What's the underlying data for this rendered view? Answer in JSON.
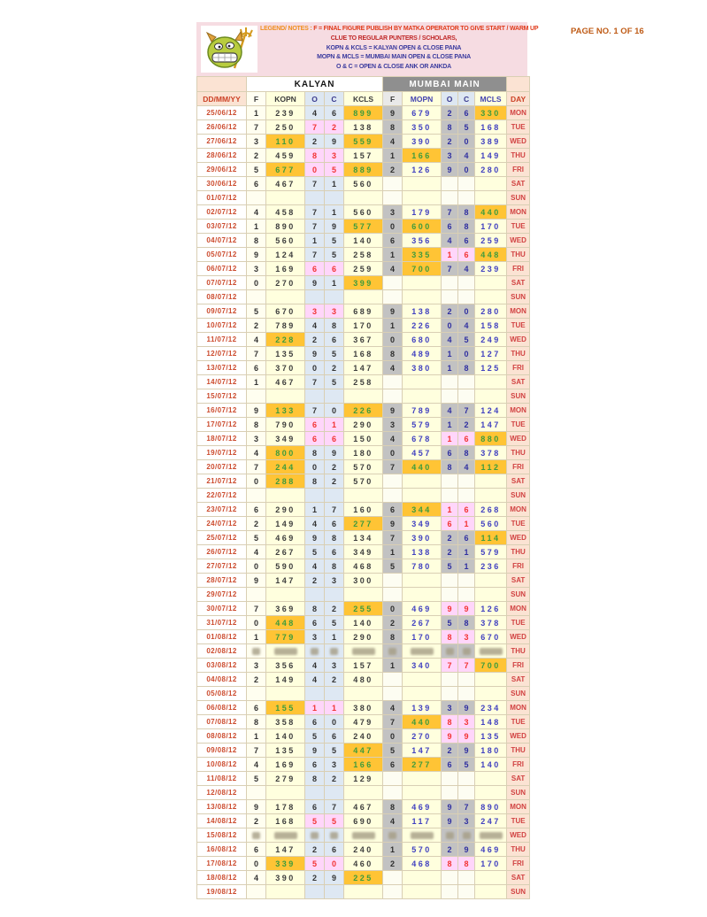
{
  "header": {
    "legend_label": "LEGEND/ NOTES :",
    "legend_line1": "F = FINAL FIGURE PUBLISH BY MATKA OPERATOR TO GIVE START / WARM UP",
    "legend_line2": "CLUE TO REGULAR PUNTERS / SCHOLARS,",
    "legend_line3": "KOPN & KCLS = KALYAN OPEN & CLOSE PANA",
    "legend_line4": "MOPN & MCLS = MUMBAI MAIN OPEN & CLOSE PANA",
    "legend_line5": "O & C = OPEN & CLOSE ANK OR ANKDA",
    "page_no": "PAGE NO. 1 OF 16",
    "mascot": "devil-mascot"
  },
  "colors": {
    "gold_highlight": "#ffc435",
    "gold_text": "#3d9b3d",
    "pink_highlight": "#ffd6fa",
    "pink_text": "#f23333",
    "pana_bg": "#ffffde",
    "kalyan_oc_bg": "#dee8f3",
    "mumbai_gray_bg": "#c2c2c2",
    "peach_bg": "#fbe3d3",
    "legend_bg": "#f6dce2",
    "date_text": "#cc4b2e",
    "mumbai_num_text": "#4040c0",
    "navy_text": "#3a3a9e"
  },
  "table": {
    "sections": {
      "kalyan": "KALYAN",
      "mumbai": "MUMBAI MAIN"
    },
    "columns": [
      "DD/MM/YY",
      "F",
      "KOPN",
      "O",
      "C",
      "KCLS",
      "F",
      "MOPN",
      "O",
      "C",
      "MCLS",
      "DAY"
    ],
    "rows": [
      {
        "date": "25/06/12",
        "day": "MON",
        "k": [
          "1",
          "239",
          "4",
          "6",
          "899"
        ],
        "m": [
          "9",
          "679",
          "2",
          "6",
          "330"
        ],
        "hl": {
          "kcls": "g",
          "mcls": "g"
        }
      },
      {
        "date": "26/06/12",
        "day": "TUE",
        "k": [
          "7",
          "250",
          "7",
          "2",
          "138"
        ],
        "m": [
          "8",
          "350",
          "8",
          "5",
          "168"
        ],
        "hl": {
          "ko": "p",
          "kc": "p"
        }
      },
      {
        "date": "27/06/12",
        "day": "WED",
        "k": [
          "3",
          "110",
          "2",
          "9",
          "559"
        ],
        "m": [
          "4",
          "390",
          "2",
          "0",
          "389"
        ],
        "hl": {
          "kopn": "g",
          "kcls": "g"
        }
      },
      {
        "date": "28/06/12",
        "day": "THU",
        "k": [
          "2",
          "459",
          "8",
          "3",
          "157"
        ],
        "m": [
          "1",
          "166",
          "3",
          "4",
          "149"
        ],
        "hl": {
          "ko": "p",
          "kc": "p",
          "mopn": "g"
        }
      },
      {
        "date": "29/06/12",
        "day": "FRI",
        "k": [
          "5",
          "677",
          "0",
          "5",
          "889"
        ],
        "m": [
          "2",
          "126",
          "9",
          "0",
          "280"
        ],
        "hl": {
          "kopn": "g",
          "kcls": "g",
          "ko": "p",
          "kc": "p"
        }
      },
      {
        "date": "30/06/12",
        "day": "SAT",
        "k": [
          "6",
          "467",
          "7",
          "1",
          "560"
        ]
      },
      {
        "date": "01/07/12",
        "day": "SUN"
      },
      {
        "date": "02/07/12",
        "day": "MON",
        "k": [
          "4",
          "458",
          "7",
          "1",
          "560"
        ],
        "m": [
          "3",
          "179",
          "7",
          "8",
          "440"
        ],
        "hl": {
          "mcls": "g"
        }
      },
      {
        "date": "03/07/12",
        "day": "TUE",
        "k": [
          "1",
          "890",
          "7",
          "9",
          "577"
        ],
        "m": [
          "0",
          "600",
          "6",
          "8",
          "170"
        ],
        "hl": {
          "kcls": "g",
          "mopn": "g"
        }
      },
      {
        "date": "04/07/12",
        "day": "WED",
        "k": [
          "8",
          "560",
          "1",
          "5",
          "140"
        ],
        "m": [
          "6",
          "356",
          "4",
          "6",
          "259"
        ]
      },
      {
        "date": "05/07/12",
        "day": "THU",
        "k": [
          "9",
          "124",
          "7",
          "5",
          "258"
        ],
        "m": [
          "1",
          "335",
          "1",
          "6",
          "448"
        ],
        "hl": {
          "mopn": "g",
          "mcls": "g",
          "mo": "p",
          "mc": "p"
        }
      },
      {
        "date": "06/07/12",
        "day": "FRI",
        "k": [
          "3",
          "169",
          "6",
          "6",
          "259"
        ],
        "m": [
          "4",
          "700",
          "7",
          "4",
          "239"
        ],
        "hl": {
          "ko": "p",
          "kc": "p",
          "mopn": "g"
        }
      },
      {
        "date": "07/07/12",
        "day": "SAT",
        "k": [
          "0",
          "270",
          "9",
          "1",
          "399"
        ],
        "hl": {
          "kcls": "g"
        }
      },
      {
        "date": "08/07/12",
        "day": "SUN"
      },
      {
        "date": "09/07/12",
        "day": "MON",
        "k": [
          "5",
          "670",
          "3",
          "3",
          "689"
        ],
        "m": [
          "9",
          "138",
          "2",
          "0",
          "280"
        ],
        "hl": {
          "ko": "p",
          "kc": "p"
        }
      },
      {
        "date": "10/07/12",
        "day": "TUE",
        "k": [
          "2",
          "789",
          "4",
          "8",
          "170"
        ],
        "m": [
          "1",
          "226",
          "0",
          "4",
          "158"
        ]
      },
      {
        "date": "11/07/12",
        "day": "WED",
        "k": [
          "4",
          "228",
          "2",
          "6",
          "367"
        ],
        "m": [
          "0",
          "680",
          "4",
          "5",
          "249"
        ],
        "hl": {
          "kopn": "g"
        }
      },
      {
        "date": "12/07/12",
        "day": "THU",
        "k": [
          "7",
          "135",
          "9",
          "5",
          "168"
        ],
        "m": [
          "8",
          "489",
          "1",
          "0",
          "127"
        ]
      },
      {
        "date": "13/07/12",
        "day": "FRI",
        "k": [
          "6",
          "370",
          "0",
          "2",
          "147"
        ],
        "m": [
          "4",
          "380",
          "1",
          "8",
          "125"
        ]
      },
      {
        "date": "14/07/12",
        "day": "SAT",
        "k": [
          "1",
          "467",
          "7",
          "5",
          "258"
        ]
      },
      {
        "date": "15/07/12",
        "day": "SUN"
      },
      {
        "date": "16/07/12",
        "day": "MON",
        "k": [
          "9",
          "133",
          "7",
          "0",
          "226"
        ],
        "m": [
          "9",
          "789",
          "4",
          "7",
          "124"
        ],
        "hl": {
          "kopn": "g",
          "kcls": "g"
        }
      },
      {
        "date": "17/07/12",
        "day": "TUE",
        "k": [
          "8",
          "790",
          "6",
          "1",
          "290"
        ],
        "m": [
          "3",
          "579",
          "1",
          "2",
          "147"
        ],
        "hl": {
          "ko": "p",
          "kc": "p"
        }
      },
      {
        "date": "18/07/12",
        "day": "WED",
        "k": [
          "3",
          "349",
          "6",
          "6",
          "150"
        ],
        "m": [
          "4",
          "678",
          "1",
          "6",
          "880"
        ],
        "hl": {
          "ko": "p",
          "kc": "p",
          "mo": "p",
          "mc": "p",
          "mcls": "g"
        }
      },
      {
        "date": "19/07/12",
        "day": "THU",
        "k": [
          "4",
          "800",
          "8",
          "9",
          "180"
        ],
        "m": [
          "0",
          "457",
          "6",
          "8",
          "378"
        ],
        "hl": {
          "kopn": "g"
        }
      },
      {
        "date": "20/07/12",
        "day": "FRI",
        "k": [
          "7",
          "244",
          "0",
          "2",
          "570"
        ],
        "m": [
          "7",
          "440",
          "8",
          "4",
          "112"
        ],
        "hl": {
          "kopn": "g",
          "mopn": "g",
          "mcls": "g"
        }
      },
      {
        "date": "21/07/12",
        "day": "SAT",
        "k": [
          "0",
          "288",
          "8",
          "2",
          "570"
        ],
        "hl": {
          "kopn": "g"
        }
      },
      {
        "date": "22/07/12",
        "day": "SUN"
      },
      {
        "date": "23/07/12",
        "day": "MON",
        "k": [
          "6",
          "290",
          "1",
          "7",
          "160"
        ],
        "m": [
          "6",
          "344",
          "1",
          "6",
          "268"
        ],
        "hl": {
          "mopn": "g",
          "mo": "p",
          "mc": "p"
        }
      },
      {
        "date": "24/07/12",
        "day": "TUE",
        "k": [
          "2",
          "149",
          "4",
          "6",
          "277"
        ],
        "m": [
          "9",
          "349",
          "6",
          "1",
          "560"
        ],
        "hl": {
          "kcls": "g",
          "mo": "p",
          "mc": "p"
        }
      },
      {
        "date": "25/07/12",
        "day": "WED",
        "k": [
          "5",
          "469",
          "9",
          "8",
          "134"
        ],
        "m": [
          "7",
          "390",
          "2",
          "6",
          "114"
        ],
        "hl": {
          "mcls": "g"
        }
      },
      {
        "date": "26/07/12",
        "day": "THU",
        "k": [
          "4",
          "267",
          "5",
          "6",
          "349"
        ],
        "m": [
          "1",
          "138",
          "2",
          "1",
          "579"
        ]
      },
      {
        "date": "27/07/12",
        "day": "FRI",
        "k": [
          "0",
          "590",
          "4",
          "8",
          "468"
        ],
        "m": [
          "5",
          "780",
          "5",
          "1",
          "236"
        ]
      },
      {
        "date": "28/07/12",
        "day": "SAT",
        "k": [
          "9",
          "147",
          "2",
          "3",
          "300"
        ]
      },
      {
        "date": "29/07/12",
        "day": "SUN"
      },
      {
        "date": "30/07/12",
        "day": "MON",
        "k": [
          "7",
          "369",
          "8",
          "2",
          "255"
        ],
        "m": [
          "0",
          "469",
          "9",
          "9",
          "126"
        ],
        "hl": {
          "kcls": "g",
          "mo": "p",
          "mc": "p"
        }
      },
      {
        "date": "31/07/12",
        "day": "TUE",
        "k": [
          "0",
          "448",
          "6",
          "5",
          "140"
        ],
        "m": [
          "2",
          "267",
          "5",
          "8",
          "378"
        ],
        "hl": {
          "kopn": "g"
        }
      },
      {
        "date": "01/08/12",
        "day": "WED",
        "k": [
          "1",
          "779",
          "3",
          "1",
          "290"
        ],
        "m": [
          "8",
          "170",
          "8",
          "3",
          "670"
        ],
        "hl": {
          "kopn": "g",
          "mo": "p",
          "mc": "p"
        }
      },
      {
        "date": "02/08/12",
        "day": "THU",
        "blur": true
      },
      {
        "date": "03/08/12",
        "day": "FRI",
        "k": [
          "3",
          "356",
          "4",
          "3",
          "157"
        ],
        "m": [
          "1",
          "340",
          "7",
          "7",
          "700"
        ],
        "hl": {
          "mo": "p",
          "mc": "p",
          "mcls": "g"
        }
      },
      {
        "date": "04/08/12",
        "day": "SAT",
        "k": [
          "2",
          "149",
          "4",
          "2",
          "480"
        ]
      },
      {
        "date": "05/08/12",
        "day": "SUN"
      },
      {
        "date": "06/08/12",
        "day": "MON",
        "k": [
          "6",
          "155",
          "1",
          "1",
          "380"
        ],
        "m": [
          "4",
          "139",
          "3",
          "9",
          "234"
        ],
        "hl": {
          "kopn": "g",
          "ko": "p",
          "kc": "p"
        }
      },
      {
        "date": "07/08/12",
        "day": "TUE",
        "k": [
          "8",
          "358",
          "6",
          "0",
          "479"
        ],
        "m": [
          "7",
          "440",
          "8",
          "3",
          "148"
        ],
        "hl": {
          "mopn": "g",
          "mo": "p",
          "mc": "p"
        }
      },
      {
        "date": "08/08/12",
        "day": "WED",
        "k": [
          "1",
          "140",
          "5",
          "6",
          "240"
        ],
        "m": [
          "0",
          "270",
          "9",
          "9",
          "135"
        ],
        "hl": {
          "mo": "p",
          "mc": "p"
        }
      },
      {
        "date": "09/08/12",
        "day": "THU",
        "k": [
          "7",
          "135",
          "9",
          "5",
          "447"
        ],
        "m": [
          "5",
          "147",
          "2",
          "9",
          "180"
        ],
        "hl": {
          "kcls": "g"
        }
      },
      {
        "date": "10/08/12",
        "day": "FRI",
        "k": [
          "4",
          "169",
          "6",
          "3",
          "166"
        ],
        "m": [
          "6",
          "277",
          "6",
          "5",
          "140"
        ],
        "hl": {
          "kcls": "g",
          "mopn": "g"
        }
      },
      {
        "date": "11/08/12",
        "day": "SAT",
        "k": [
          "5",
          "279",
          "8",
          "2",
          "129"
        ]
      },
      {
        "date": "12/08/12",
        "day": "SUN"
      },
      {
        "date": "13/08/12",
        "day": "MON",
        "k": [
          "9",
          "178",
          "6",
          "7",
          "467"
        ],
        "m": [
          "8",
          "469",
          "9",
          "7",
          "890"
        ]
      },
      {
        "date": "14/08/12",
        "day": "TUE",
        "k": [
          "2",
          "168",
          "5",
          "5",
          "690"
        ],
        "m": [
          "4",
          "117",
          "9",
          "3",
          "247"
        ],
        "hl": {
          "ko": "p",
          "kc": "p"
        }
      },
      {
        "date": "15/08/12",
        "day": "WED",
        "blur": true
      },
      {
        "date": "16/08/12",
        "day": "THU",
        "k": [
          "6",
          "147",
          "2",
          "6",
          "240"
        ],
        "m": [
          "1",
          "570",
          "2",
          "9",
          "469"
        ]
      },
      {
        "date": "17/08/12",
        "day": "FRI",
        "k": [
          "0",
          "339",
          "5",
          "0",
          "460"
        ],
        "m": [
          "2",
          "468",
          "8",
          "8",
          "170"
        ],
        "hl": {
          "kopn": "g",
          "ko": "p",
          "kc": "p",
          "mo": "p",
          "mc": "p"
        }
      },
      {
        "date": "18/08/12",
        "day": "SAT",
        "k": [
          "4",
          "390",
          "2",
          "9",
          "225"
        ],
        "hl": {
          "kcls": "g"
        }
      },
      {
        "date": "19/08/12",
        "day": "SUN"
      }
    ]
  }
}
